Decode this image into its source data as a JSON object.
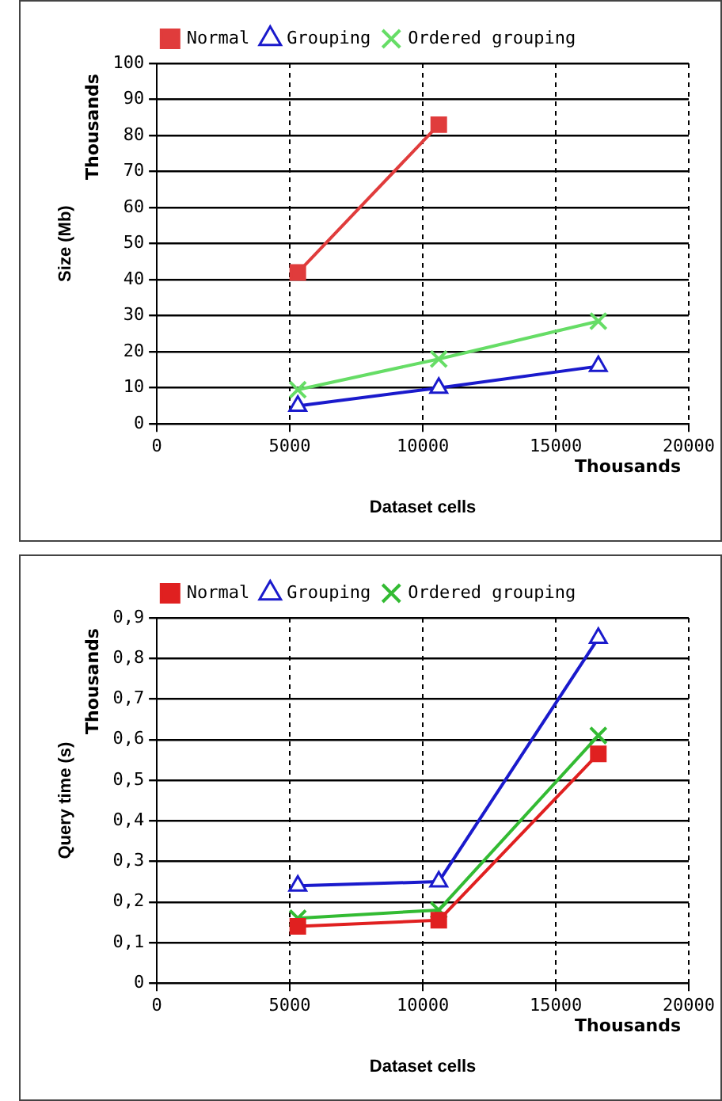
{
  "chart_data": [
    {
      "type": "line",
      "xlabel": "Dataset cells",
      "ylabel": "Size (Mb)",
      "annotations": [
        "Thousands",
        "Thousands"
      ],
      "x": [
        5300,
        10600,
        16600
      ],
      "series": [
        {
          "name": "Normal",
          "color": "#e03c3c",
          "marker": "square",
          "values": [
            42,
            83,
            null
          ]
        },
        {
          "name": "Grouping",
          "color": "#1a1acc",
          "marker": "triangle",
          "values": [
            5,
            10,
            16
          ]
        },
        {
          "name": "Ordered grouping",
          "color": "#66dd66",
          "marker": "cross",
          "values": [
            9.5,
            18,
            28.5
          ]
        }
      ],
      "xlim": [
        0,
        20000
      ],
      "xticks": [
        0,
        5000,
        10000,
        15000,
        20000
      ],
      "ylim": [
        0,
        100
      ],
      "yticks": [
        0,
        10,
        20,
        30,
        40,
        50,
        60,
        70,
        80,
        90,
        100
      ],
      "grid": true,
      "legend": "top"
    },
    {
      "type": "line",
      "xlabel": "Dataset cells",
      "ylabel": "Query time (s)",
      "annotations": [
        "Thousands",
        "Thousands"
      ],
      "x": [
        5300,
        10600,
        16600
      ],
      "series": [
        {
          "name": "Normal",
          "color": "#e02020",
          "marker": "square",
          "values": [
            0.14,
            0.155,
            0.565
          ]
        },
        {
          "name": "Grouping",
          "color": "#1a1acc",
          "marker": "triangle",
          "values": [
            0.24,
            0.25,
            0.85
          ]
        },
        {
          "name": "Ordered grouping",
          "color": "#33bb33",
          "marker": "cross",
          "values": [
            0.16,
            0.18,
            0.61
          ]
        }
      ],
      "xlim": [
        0,
        20000
      ],
      "xticks": [
        0,
        5000,
        10000,
        15000,
        20000
      ],
      "ylim": [
        0,
        0.9
      ],
      "yticks": [
        0,
        {
          "value": 0.1,
          "label": "0,1"
        },
        {
          "value": 0.2,
          "label": "0,2"
        },
        {
          "value": 0.3,
          "label": "0,3"
        },
        {
          "value": 0.4,
          "label": "0,4"
        },
        {
          "value": 0.5,
          "label": "0,5"
        },
        {
          "value": 0.6,
          "label": "0,6"
        },
        {
          "value": 0.7,
          "label": "0,7"
        },
        {
          "value": 0.8,
          "label": "0,8"
        },
        {
          "value": 0.9,
          "label": "0,9"
        }
      ],
      "grid": true,
      "legend": "top"
    }
  ]
}
